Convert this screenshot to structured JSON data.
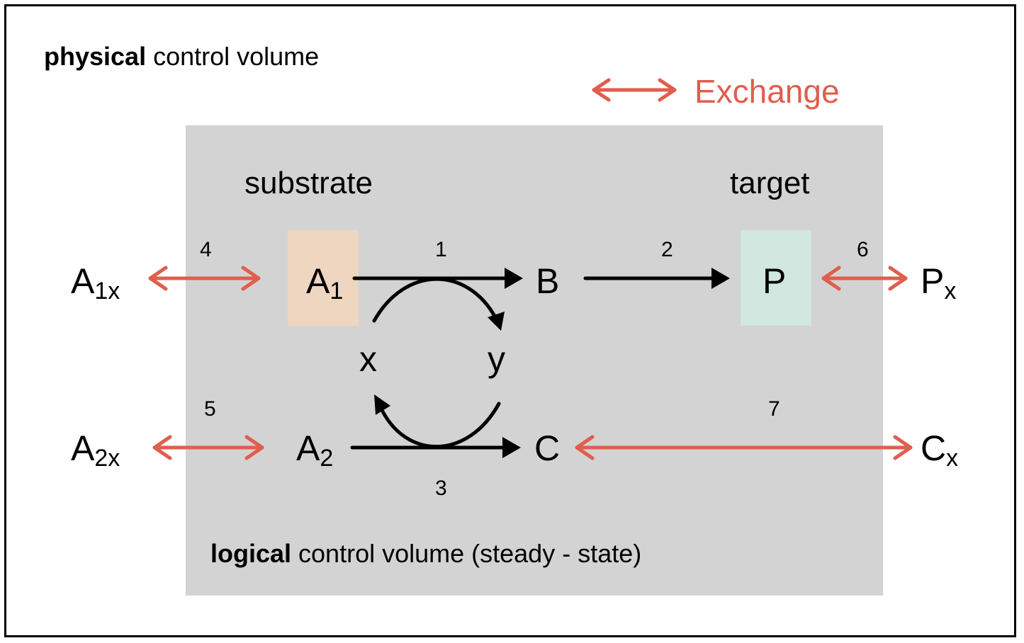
{
  "physical_title": {
    "bold": "physical",
    "rest": " control volume"
  },
  "logical_title": {
    "bold": "logical",
    "rest": " control volume (steady - state)"
  },
  "legend": {
    "label": "Exchange",
    "color": "#e05e4d"
  },
  "headings": {
    "substrate": "substrate",
    "target": "target"
  },
  "species": {
    "A1x": {
      "main": "A",
      "sub": "1x"
    },
    "A1": {
      "main": "A",
      "sub": "1"
    },
    "B": {
      "main": "B"
    },
    "P": {
      "main": "P"
    },
    "Px": {
      "main": "P",
      "sub": "x"
    },
    "x": {
      "main": "x"
    },
    "y": {
      "main": "y"
    },
    "A2x": {
      "main": "A",
      "sub": "2x"
    },
    "A2": {
      "main": "A",
      "sub": "2"
    },
    "C": {
      "main": "C"
    },
    "Cx": {
      "main": "C",
      "sub": "x"
    }
  },
  "reaction_numbers": {
    "r1": "1",
    "r2": "2",
    "r3": "3",
    "r4": "4",
    "r5": "5",
    "r6": "6",
    "r7": "7"
  },
  "colors": {
    "exchange_arrow": "#e05e4d",
    "gray_region": "#d3d3d3",
    "substrate_box": "#efd6c1",
    "target_box": "#d0e8df"
  }
}
